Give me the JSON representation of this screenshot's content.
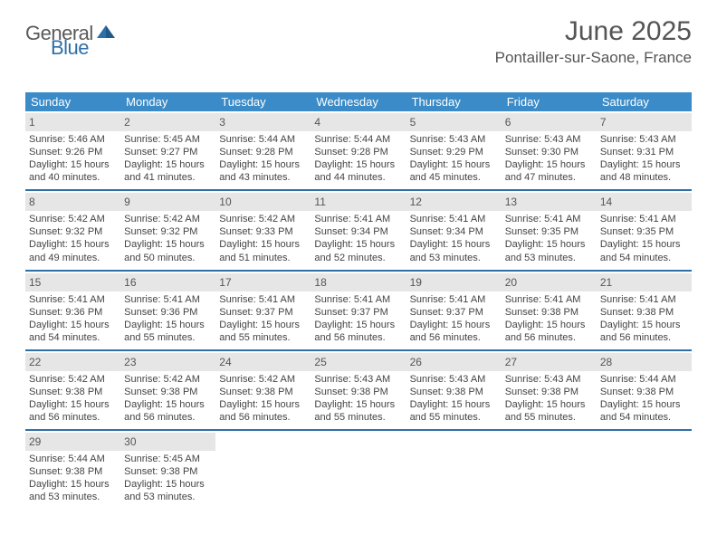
{
  "brand": {
    "part1": "General",
    "part2": "Blue"
  },
  "title": "June 2025",
  "location": "Pontailler-sur-Saone, France",
  "colors": {
    "header_bg": "#3b8bc8",
    "rule": "#2f6fa8",
    "daynum_bg": "#e6e6e6",
    "text": "#444444",
    "title_text": "#555555",
    "logo_gray": "#5a5a5a",
    "logo_blue": "#2f6fa8",
    "page_bg": "#ffffff"
  },
  "typography": {
    "title_fontsize": 30,
    "location_fontsize": 17,
    "weekday_fontsize": 13,
    "daynum_fontsize": 12,
    "body_fontsize": 11
  },
  "weekdays": [
    "Sunday",
    "Monday",
    "Tuesday",
    "Wednesday",
    "Thursday",
    "Friday",
    "Saturday"
  ],
  "weeks": [
    [
      {
        "n": "1",
        "sr": "5:46 AM",
        "ss": "9:26 PM",
        "dl": "15 hours and 40 minutes."
      },
      {
        "n": "2",
        "sr": "5:45 AM",
        "ss": "9:27 PM",
        "dl": "15 hours and 41 minutes."
      },
      {
        "n": "3",
        "sr": "5:44 AM",
        "ss": "9:28 PM",
        "dl": "15 hours and 43 minutes."
      },
      {
        "n": "4",
        "sr": "5:44 AM",
        "ss": "9:28 PM",
        "dl": "15 hours and 44 minutes."
      },
      {
        "n": "5",
        "sr": "5:43 AM",
        "ss": "9:29 PM",
        "dl": "15 hours and 45 minutes."
      },
      {
        "n": "6",
        "sr": "5:43 AM",
        "ss": "9:30 PM",
        "dl": "15 hours and 47 minutes."
      },
      {
        "n": "7",
        "sr": "5:43 AM",
        "ss": "9:31 PM",
        "dl": "15 hours and 48 minutes."
      }
    ],
    [
      {
        "n": "8",
        "sr": "5:42 AM",
        "ss": "9:32 PM",
        "dl": "15 hours and 49 minutes."
      },
      {
        "n": "9",
        "sr": "5:42 AM",
        "ss": "9:32 PM",
        "dl": "15 hours and 50 minutes."
      },
      {
        "n": "10",
        "sr": "5:42 AM",
        "ss": "9:33 PM",
        "dl": "15 hours and 51 minutes."
      },
      {
        "n": "11",
        "sr": "5:41 AM",
        "ss": "9:34 PM",
        "dl": "15 hours and 52 minutes."
      },
      {
        "n": "12",
        "sr": "5:41 AM",
        "ss": "9:34 PM",
        "dl": "15 hours and 53 minutes."
      },
      {
        "n": "13",
        "sr": "5:41 AM",
        "ss": "9:35 PM",
        "dl": "15 hours and 53 minutes."
      },
      {
        "n": "14",
        "sr": "5:41 AM",
        "ss": "9:35 PM",
        "dl": "15 hours and 54 minutes."
      }
    ],
    [
      {
        "n": "15",
        "sr": "5:41 AM",
        "ss": "9:36 PM",
        "dl": "15 hours and 54 minutes."
      },
      {
        "n": "16",
        "sr": "5:41 AM",
        "ss": "9:36 PM",
        "dl": "15 hours and 55 minutes."
      },
      {
        "n": "17",
        "sr": "5:41 AM",
        "ss": "9:37 PM",
        "dl": "15 hours and 55 minutes."
      },
      {
        "n": "18",
        "sr": "5:41 AM",
        "ss": "9:37 PM",
        "dl": "15 hours and 56 minutes."
      },
      {
        "n": "19",
        "sr": "5:41 AM",
        "ss": "9:37 PM",
        "dl": "15 hours and 56 minutes."
      },
      {
        "n": "20",
        "sr": "5:41 AM",
        "ss": "9:38 PM",
        "dl": "15 hours and 56 minutes."
      },
      {
        "n": "21",
        "sr": "5:41 AM",
        "ss": "9:38 PM",
        "dl": "15 hours and 56 minutes."
      }
    ],
    [
      {
        "n": "22",
        "sr": "5:42 AM",
        "ss": "9:38 PM",
        "dl": "15 hours and 56 minutes."
      },
      {
        "n": "23",
        "sr": "5:42 AM",
        "ss": "9:38 PM",
        "dl": "15 hours and 56 minutes."
      },
      {
        "n": "24",
        "sr": "5:42 AM",
        "ss": "9:38 PM",
        "dl": "15 hours and 56 minutes."
      },
      {
        "n": "25",
        "sr": "5:43 AM",
        "ss": "9:38 PM",
        "dl": "15 hours and 55 minutes."
      },
      {
        "n": "26",
        "sr": "5:43 AM",
        "ss": "9:38 PM",
        "dl": "15 hours and 55 minutes."
      },
      {
        "n": "27",
        "sr": "5:43 AM",
        "ss": "9:38 PM",
        "dl": "15 hours and 55 minutes."
      },
      {
        "n": "28",
        "sr": "5:44 AM",
        "ss": "9:38 PM",
        "dl": "15 hours and 54 minutes."
      }
    ],
    [
      {
        "n": "29",
        "sr": "5:44 AM",
        "ss": "9:38 PM",
        "dl": "15 hours and 53 minutes."
      },
      {
        "n": "30",
        "sr": "5:45 AM",
        "ss": "9:38 PM",
        "dl": "15 hours and 53 minutes."
      },
      null,
      null,
      null,
      null,
      null
    ]
  ],
  "labels": {
    "sunrise": "Sunrise:",
    "sunset": "Sunset:",
    "daylight": "Daylight:"
  }
}
